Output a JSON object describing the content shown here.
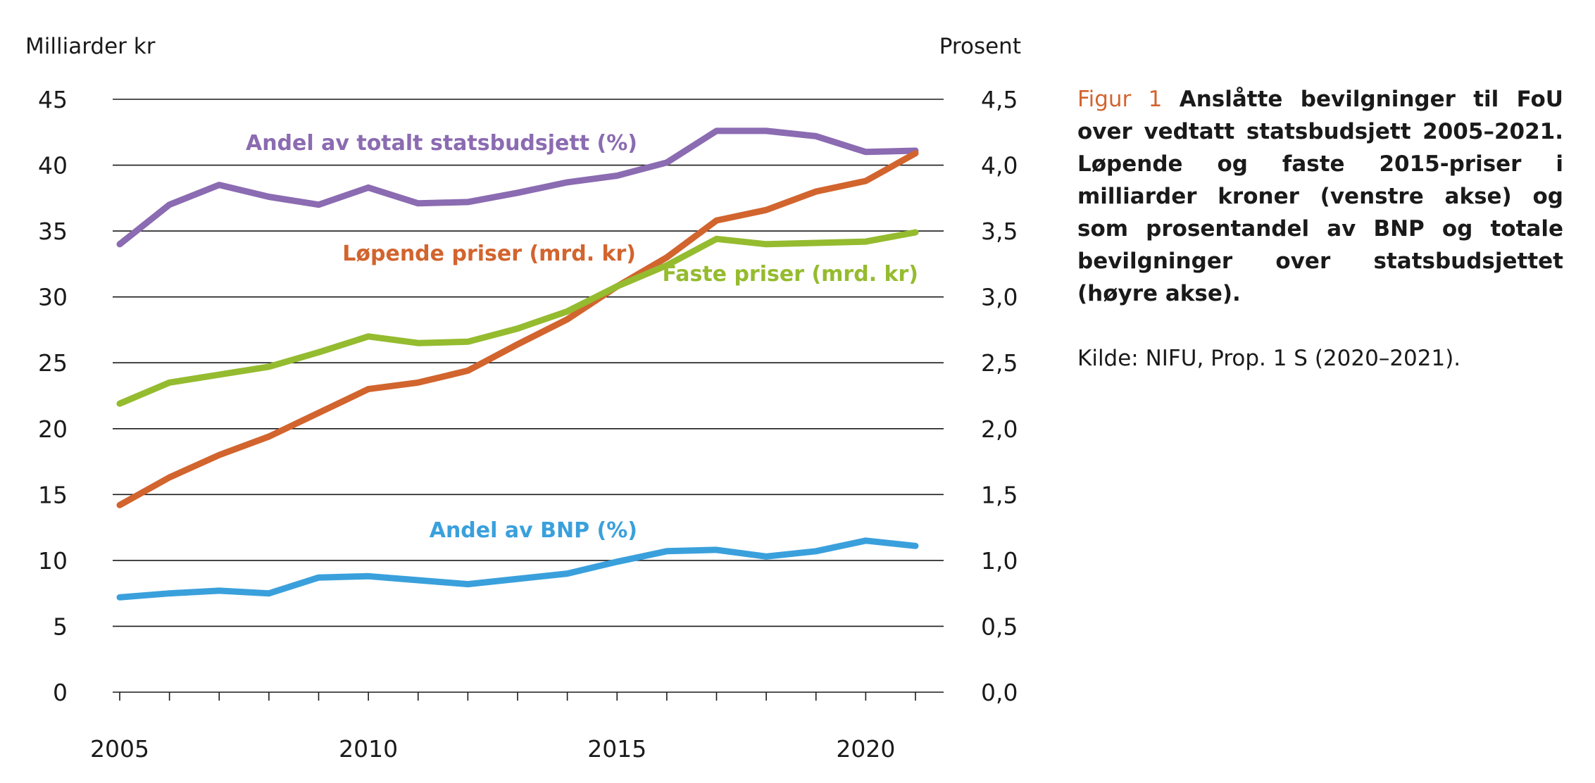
{
  "chart_data": {
    "type": "line",
    "left_axis_title": "Milliarder kr",
    "right_axis_title": "Prosent",
    "x": [
      2005,
      2006,
      2007,
      2008,
      2009,
      2010,
      2011,
      2012,
      2013,
      2014,
      2015,
      2016,
      2017,
      2018,
      2019,
      2020,
      2021
    ],
    "x_tick_labels": [
      "2005",
      "2010",
      "2015",
      "2020"
    ],
    "x_tick_values": [
      2005,
      2010,
      2015,
      2020
    ],
    "xlim": [
      2005,
      2021
    ],
    "ylim_left": [
      0,
      45
    ],
    "ylim_right": [
      0,
      4.5
    ],
    "left_tick_labels": [
      "0",
      "5",
      "10",
      "15",
      "20",
      "25",
      "30",
      "35",
      "40",
      "45"
    ],
    "right_tick_labels": [
      "0,0",
      "0,5",
      "1,0",
      "1,5",
      "2,0",
      "2,5",
      "3,0",
      "3,5",
      "4,0",
      "4,5"
    ],
    "grid": "horizontal",
    "series": [
      {
        "name": "Andel av totalt statsbudsjett (%)",
        "axis": "right",
        "color": "#8b6bb1",
        "values": [
          3.4,
          3.7,
          3.85,
          3.76,
          3.7,
          3.83,
          3.71,
          3.72,
          3.79,
          3.87,
          3.92,
          4.02,
          4.26,
          4.26,
          4.22,
          4.1,
          4.11
        ]
      },
      {
        "name": "Løpende priser (mrd. kr)",
        "axis": "left",
        "color": "#d2642e",
        "values": [
          14.2,
          16.3,
          18.0,
          19.4,
          21.2,
          23.0,
          23.5,
          24.4,
          26.4,
          28.3,
          30.8,
          33.0,
          35.8,
          36.6,
          38.0,
          38.8,
          40.9
        ]
      },
      {
        "name": "Faste priser (mrd. kr)",
        "axis": "left",
        "color": "#95bb2f",
        "values": [
          21.9,
          23.5,
          24.1,
          24.7,
          25.8,
          27.0,
          26.5,
          26.6,
          27.6,
          28.9,
          30.8,
          32.4,
          34.4,
          34.0,
          34.1,
          34.2,
          34.9
        ]
      },
      {
        "name": "Andel av BNP (%)",
        "axis": "right",
        "color": "#3aa0dc",
        "values": [
          0.72,
          0.75,
          0.77,
          0.75,
          0.87,
          0.88,
          0.85,
          0.82,
          0.86,
          0.9,
          0.99,
          1.07,
          1.08,
          1.03,
          1.07,
          1.15,
          1.11
        ]
      }
    ]
  },
  "caption": {
    "figure_label": "Figur 1",
    "title": "Anslåtte bevilgninger til FoU over vedtatt statsbudsjett 2005–2021. Løpende og faste 2015-priser i milliarder kroner (venstre akse) og som prosentandel av BNP og totale bevilgninger over statsbudsjettet (høyre akse).",
    "source": "Kilde: NIFU, Prop. 1 S (2020–2021)."
  }
}
